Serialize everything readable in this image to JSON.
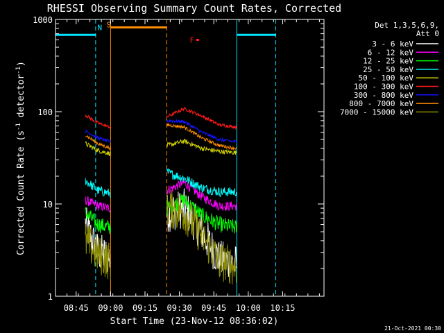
{
  "chart_data": {
    "type": "line",
    "title": "RHESSI Observing Summary Count Rates, Corrected",
    "xlabel": "Start Time (23-Nov-12 08:36:02)",
    "ylabel": "Corrected Count Rate (s⁻¹ detector⁻¹)",
    "ylabel_main": "Corrected Count Rate (s",
    "ylabel_sup1": "-1",
    "ylabel_mid": " detector",
    "ylabel_sup2": "-1",
    "ylabel_end": ")",
    "yscale": "log",
    "ylim": [
      1,
      1000
    ],
    "xlim_minutes": [
      0,
      117
    ],
    "x_ticks": [
      {
        "label": "08:45",
        "min": 9
      },
      {
        "label": "09:00",
        "min": 24
      },
      {
        "label": "09:15",
        "min": 39
      },
      {
        "label": "09:30",
        "min": 54
      },
      {
        "label": "09:45",
        "min": 69
      },
      {
        "label": "10:00",
        "min": 84
      },
      {
        "label": "10:15",
        "min": 99
      }
    ],
    "y_ticks": [
      {
        "label": "1",
        "value": 1
      },
      {
        "label": "10",
        "value": 10
      },
      {
        "label": "100",
        "value": 100
      },
      {
        "label": "1000",
        "value": 1000
      }
    ],
    "legend_header": [
      "Det 1,3,5,6,9,",
      "Att 0"
    ],
    "footer_date": "21-Oct-2021 00:30",
    "annotations": [
      {
        "label": "N",
        "min": 19.3,
        "value": 820,
        "color": "#00e5ff"
      },
      {
        "label": "S",
        "min": 23.2,
        "value": 880,
        "color": "#ff8c00"
      },
      {
        "label": "F",
        "min": 59.5,
        "value": 600,
        "color": "#ff1a1a"
      }
    ],
    "night_bars": [
      {
        "start": 0,
        "end": 17.5,
        "value": 680
      },
      {
        "start": 79,
        "end": 96,
        "value": 680
      }
    ],
    "saa_bar": {
      "start": 24,
      "end": 48.5,
      "value": 820
    },
    "flare_mark": {
      "start": 61.3,
      "end": 62.6,
      "value": 600
    },
    "vlines": [
      {
        "min": 0,
        "style": "solid",
        "color": "#00e5ff"
      },
      {
        "min": 17.5,
        "style": "dashed",
        "color": "#00e5ff"
      },
      {
        "min": 24,
        "style": "solid",
        "color": "#ff8c00"
      },
      {
        "min": 48.5,
        "style": "dashed",
        "color": "#ff8c00"
      },
      {
        "min": 79,
        "style": "solid",
        "color": "#00e5ff"
      },
      {
        "min": 96,
        "style": "dashed",
        "color": "#00e5ff"
      }
    ],
    "segments": [
      [
        13,
        24
      ],
      [
        48.5,
        79
      ]
    ],
    "series": [
      {
        "name": "3 - 6 keV",
        "color": "#ffffff",
        "seg1": [
          6,
          3,
          2.6
        ],
        "seg2": [
          8,
          9,
          5,
          2.5,
          2.2
        ],
        "noise": 0.5
      },
      {
        "name": "6 - 12 keV",
        "color": "#ff00ff",
        "seg1": [
          11,
          9.5,
          9
        ],
        "seg2": [
          14,
          17,
          12,
          9.5,
          9.5
        ],
        "noise": 0.12
      },
      {
        "name": "12 - 25 keV",
        "color": "#00ff00",
        "seg1": [
          8,
          6,
          5.5
        ],
        "seg2": [
          9,
          11,
          7.5,
          6,
          5.5
        ],
        "noise": 0.2
      },
      {
        "name": "25 - 50 keV",
        "color": "#00ffff",
        "seg1": [
          18,
          14,
          13
        ],
        "seg2": [
          22,
          19,
          15,
          13.5,
          13.5
        ],
        "noise": 0.12
      },
      {
        "name": "50 - 100 keV",
        "color": "#d2d200",
        "seg1": [
          45,
          38,
          35
        ],
        "seg2": [
          43,
          48,
          40,
          37,
          36
        ],
        "noise": 0.06
      },
      {
        "name": "100 - 300 keV",
        "color": "#ff1a1a",
        "seg1": [
          92,
          75,
          68
        ],
        "seg2": [
          88,
          108,
          90,
          72,
          68
        ],
        "noise": 0.04
      },
      {
        "name": "300 - 800 keV",
        "color": "#1414ff",
        "seg1": [
          62,
          52,
          47
        ],
        "seg2": [
          80,
          78,
          60,
          50,
          47
        ],
        "noise": 0.04
      },
      {
        "name": "800 - 7000 keV",
        "color": "#ff8c00",
        "seg1": [
          56,
          45,
          40
        ],
        "seg2": [
          72,
          68,
          52,
          43,
          40
        ],
        "noise": 0.04
      },
      {
        "name": "7000 - 15000 keV",
        "color": "#8b8b00",
        "seg1": [
          4,
          2.8,
          2.4
        ],
        "seg2": [
          9,
          8,
          4.5,
          2.4,
          2.1
        ],
        "noise": 0.5
      }
    ]
  }
}
